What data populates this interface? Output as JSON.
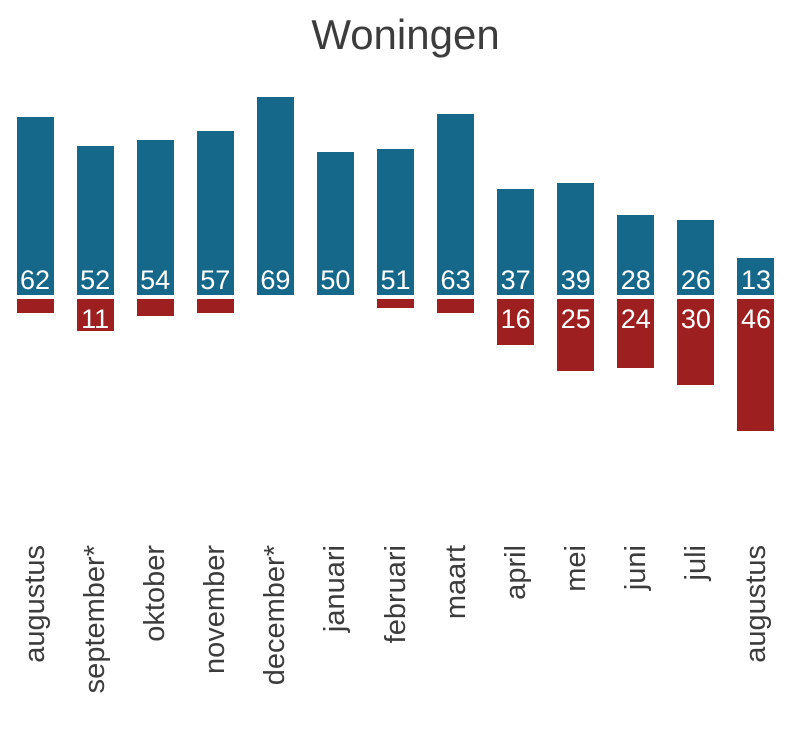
{
  "title": "Woningen",
  "colors": {
    "positive_bar": "#16688a",
    "negative_bar": "#9e1f1f",
    "bar_value_text": "#ffffff",
    "axis_text": "#3c3c3c",
    "title_text": "#3c3c3c",
    "background": "#ffffff"
  },
  "chart_data": {
    "type": "bar",
    "title": "Woningen",
    "orientation": "diverging-vertical",
    "grid": false,
    "legend": "none",
    "value_labels": "inside-base",
    "xlabel": "",
    "ylabel": "",
    "ylim": [
      -46,
      69
    ],
    "categories": [
      "augustus",
      "september*",
      "oktober",
      "november",
      "december*",
      "januari",
      "februari",
      "maart",
      "april",
      "mei",
      "juni",
      "juli",
      "augustus"
    ],
    "series": [
      {
        "name": "positive",
        "direction": "up",
        "color": "#16688a",
        "values": [
          62,
          52,
          54,
          57,
          69,
          50,
          51,
          63,
          37,
          39,
          28,
          26,
          13
        ],
        "labels": [
          "62",
          "52",
          "54",
          "57",
          "69",
          "50",
          "51",
          "63",
          "37",
          "39",
          "28",
          "26",
          "13"
        ]
      },
      {
        "name": "negative",
        "direction": "down",
        "color": "#9e1f1f",
        "values": [
          5,
          11,
          6,
          5,
          0,
          0,
          3,
          5,
          16,
          25,
          24,
          30,
          46
        ],
        "labels": [
          "",
          "11",
          "",
          "",
          "",
          "",
          "",
          "",
          "16",
          "25",
          "24",
          "30",
          "46"
        ]
      }
    ]
  }
}
